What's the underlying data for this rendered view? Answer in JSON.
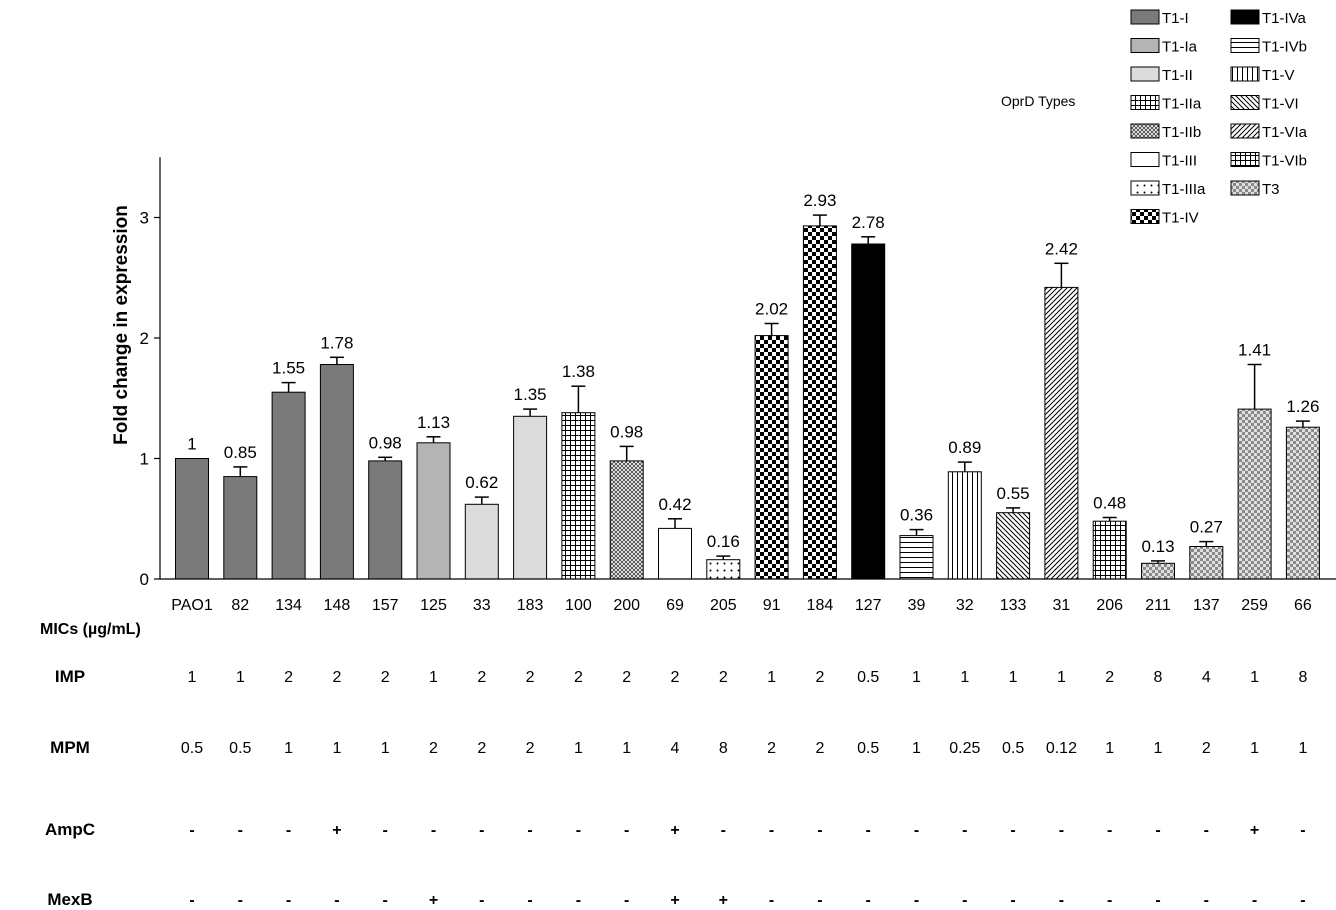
{
  "chart_data": {
    "type": "bar",
    "ylabel": "Fold change in expression",
    "ylim": [
      0,
      3.5
    ],
    "yticks": [
      0,
      1,
      2,
      3
    ],
    "categories": [
      "PAO1",
      "82",
      "134",
      "148",
      "157",
      "125",
      "33",
      "183",
      "100",
      "200",
      "69",
      "205",
      "91",
      "184",
      "127",
      "39",
      "32",
      "133",
      "31",
      "206",
      "211",
      "137",
      "259",
      "66"
    ],
    "values": [
      1,
      0.85,
      1.55,
      1.78,
      0.98,
      1.13,
      0.62,
      1.35,
      1.38,
      0.98,
      0.42,
      0.16,
      2.02,
      2.93,
      2.78,
      0.36,
      0.89,
      0.55,
      2.42,
      0.48,
      0.13,
      0.27,
      1.41,
      1.26
    ],
    "value_labels": [
      "1",
      "0.85",
      "1.55",
      "1.78",
      "0.98",
      "1.13",
      "0.62",
      "1.35",
      "1.38",
      "0.98",
      "0.42",
      "0.16",
      "2.02",
      "2.93",
      "2.78",
      "0.36",
      "0.89",
      "0.55",
      "2.42",
      "0.48",
      "0.13",
      "0.27",
      "1.41",
      "1.26"
    ],
    "error_upper": [
      1.0,
      0.93,
      1.63,
      1.84,
      1.01,
      1.18,
      0.68,
      1.41,
      1.6,
      1.1,
      0.5,
      0.19,
      2.12,
      3.02,
      2.84,
      0.41,
      0.97,
      0.59,
      2.62,
      0.51,
      0.15,
      0.31,
      1.78,
      1.31
    ],
    "types": [
      "T1-I",
      "T1-I",
      "T1-I",
      "T1-I",
      "T1-I",
      "T1-Ia",
      "T1-II",
      "T1-II",
      "T1-IIa",
      "T1-IIb",
      "T1-III",
      "T1-IIIa",
      "T1-IV",
      "T1-IV",
      "T1-IVa",
      "T1-IVb",
      "T1-V",
      "T1-VI",
      "T1-VIa",
      "T1-VIb",
      "T3",
      "T3",
      "T3",
      "T3"
    ],
    "legend_title": "OprD Types",
    "legend_placement": "top-right",
    "legend": [
      {
        "label": "T1-I",
        "pattern": "dark"
      },
      {
        "label": "T1-Ia",
        "pattern": "medium"
      },
      {
        "label": "T1-II",
        "pattern": "light"
      },
      {
        "label": "T1-IIa",
        "pattern": "grid"
      },
      {
        "label": "T1-IIb",
        "pattern": "crosshatch"
      },
      {
        "label": "T1-III",
        "pattern": "white"
      },
      {
        "label": "T1-IIIa",
        "pattern": "dots"
      },
      {
        "label": "T1-IV",
        "pattern": "checker"
      },
      {
        "label": "T1-IVa",
        "pattern": "black"
      },
      {
        "label": "T1-IVb",
        "pattern": "hlines"
      },
      {
        "label": "T1-V",
        "pattern": "vlines"
      },
      {
        "label": "T1-VI",
        "pattern": "diagback"
      },
      {
        "label": "T1-VIa",
        "pattern": "diagfwd"
      },
      {
        "label": "T1-VIb",
        "pattern": "grid"
      },
      {
        "label": "T3",
        "pattern": "smallcheck"
      }
    ],
    "colors": {
      "dark": "#7a7a7a",
      "medium": "#b4b4b4",
      "light": "#dcdcdc",
      "black": "#000000",
      "axis": "#000000"
    }
  },
  "table": {
    "title": "MICs (µg/mL)",
    "rows": [
      {
        "label": "IMP",
        "values": [
          "1",
          "1",
          "2",
          "2",
          "2",
          "1",
          "2",
          "2",
          "2",
          "2",
          "2",
          "2",
          "1",
          "2",
          "0.5",
          "1",
          "1",
          "1",
          "1",
          "2",
          "8",
          "4",
          "1",
          "8"
        ]
      },
      {
        "label": "MPM",
        "values": [
          "0.5",
          "0.5",
          "1",
          "1",
          "1",
          "2",
          "2",
          "2",
          "1",
          "1",
          "4",
          "8",
          "2",
          "2",
          "0.5",
          "1",
          "0.25",
          "0.5",
          "0.12",
          "1",
          "1",
          "2",
          "1",
          "1"
        ]
      },
      {
        "label": "AmpC",
        "values": [
          "-",
          "-",
          "-",
          "+",
          "-",
          "-",
          "-",
          "-",
          "-",
          "-",
          "+",
          "-",
          "-",
          "-",
          "-",
          "-",
          "-",
          "-",
          "-",
          "-",
          "-",
          "-",
          "+",
          "-"
        ]
      },
      {
        "label": "MexB",
        "values": [
          "-",
          "-",
          "-",
          "-",
          "-",
          "+",
          "-",
          "-",
          "-",
          "-",
          "+",
          "+",
          "-",
          "-",
          "-",
          "-",
          "-",
          "-",
          "-",
          "-",
          "-",
          "-",
          "-",
          "-"
        ]
      }
    ]
  }
}
